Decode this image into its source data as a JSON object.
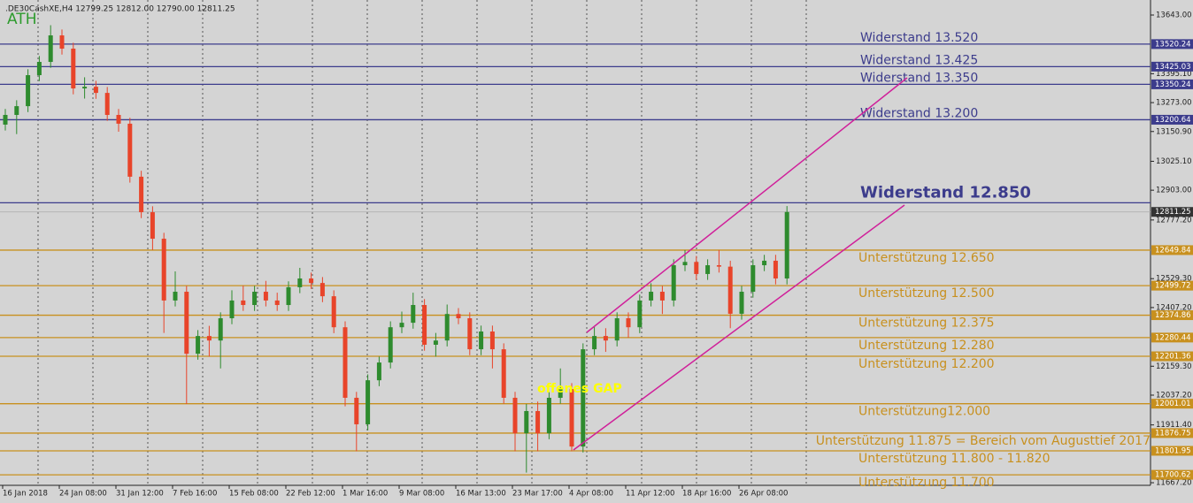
{
  "chart_data": {
    "type": "candlestick",
    "header": ".DE30CashXE,H4  12799.25 12812.00 12790.00 12811.25",
    "annotations": {
      "ath": "ATH",
      "gap": "offenes GAP"
    },
    "up_color": "#2e8b2e",
    "down_color": "#e8442a",
    "ylim": [
      13706.5,
      11656.2
    ],
    "yticks": [
      {
        "value": 13643,
        "label": "13643.00"
      },
      {
        "value": 13395.1,
        "label": "13395.10"
      },
      {
        "value": 13273,
        "label": "13273.00"
      },
      {
        "value": 13150.9,
        "label": "13150.90"
      },
      {
        "value": 13025.1,
        "label": "13025.10"
      },
      {
        "value": 12903,
        "label": "12903.00"
      },
      {
        "value": 12777.2,
        "label": "12777.20"
      },
      {
        "value": 12529.3,
        "label": "12529.30"
      },
      {
        "value": 12407.2,
        "label": "12407.20"
      },
      {
        "value": 12159.3,
        "label": "12159.30"
      },
      {
        "value": 12037.2,
        "label": "12037.20"
      },
      {
        "value": 11911.4,
        "label": "11911.40"
      },
      {
        "value": 11667.2,
        "label": "11667.20"
      }
    ],
    "current_price": 12811.25,
    "levels": [
      {
        "value": 13520.24,
        "text": "Widerstand 13.520",
        "color": "#3c3c8c"
      },
      {
        "value": 13425.03,
        "text": "Widerstand 13.425",
        "color": "#3c3c8c"
      },
      {
        "value": 13350.24,
        "text": "Widerstand 13.350",
        "color": "#3c3c8c"
      },
      {
        "value": 13200.64,
        "text": "Widerstand 13.200",
        "color": "#3c3c8c"
      },
      {
        "value": 12850,
        "text": "Widerstand 12.850",
        "color": "#3c3c8c"
      },
      {
        "value": 12649.84,
        "text": "Unterstützung 12.650",
        "color": "#c8901e"
      },
      {
        "value": 12499.72,
        "text": "Unterstützung 12.500",
        "color": "#c8901e"
      },
      {
        "value": 12374.86,
        "text": "Unterstützung 12.375",
        "color": "#c8901e"
      },
      {
        "value": 12280.44,
        "text": "Unterstützung 12.280",
        "color": "#c8901e"
      },
      {
        "value": 12201.36,
        "text": "Unterstützung 12.200",
        "color": "#c8901e"
      },
      {
        "value": 12001.01,
        "text": "Unterstützung12.000",
        "color": "#c8901e"
      },
      {
        "value": 11876.75,
        "text": "Unterstützung 11.875 = Bereich vom Augusttief 2017",
        "color": "#c8901e"
      },
      {
        "value": 11801.95,
        "text": "Unterstützung 11.800 - 11.820",
        "color": "#c8901e"
      },
      {
        "value": 11700.62,
        "text": "Unterstützung 11.700",
        "color": "#c8901e"
      }
    ],
    "categories": [
      "16 Jan 2018",
      null,
      null,
      null,
      null,
      "24 Jan 08:00",
      null,
      null,
      null,
      null,
      "31 Jan 12:00",
      null,
      null,
      null,
      null,
      "7 Feb 16:00",
      null,
      null,
      null,
      null,
      "15 Feb 08:00",
      null,
      null,
      null,
      null,
      "22 Feb 12:00",
      null,
      null,
      null,
      null,
      "1 Mar 16:00",
      null,
      null,
      null,
      null,
      "9 Mar 08:00",
      null,
      null,
      null,
      null,
      "16 Mar 13:00",
      null,
      null,
      null,
      null,
      "23 Mar 17:00",
      null,
      null,
      null,
      null,
      "4 Apr 08:00",
      null,
      null,
      null,
      null,
      "11 Apr 12:00",
      null,
      null,
      null,
      null,
      "18 Apr 16:00",
      null,
      null,
      null,
      null,
      "26 Apr 08:00",
      null,
      null,
      null,
      null
    ],
    "open": [
      13180,
      13221,
      13258,
      13389,
      13445,
      13557,
      13501,
      13333,
      13340,
      13314,
      13221,
      13184,
      12960,
      12810,
      12698,
      12437,
      12474,
      12212,
      12287,
      12268,
      12362,
      12437,
      12418,
      12474,
      12437,
      12418,
      12493,
      12530,
      12511,
      12455,
      12324,
      12026,
      11914,
      12100,
      12175,
      12324,
      12343,
      12418,
      12250,
      12268,
      12380,
      12362,
      12231,
      12306,
      12231,
      12026,
      11876,
      11970,
      11876,
      12026,
      12063,
      11820,
      12231,
      12287,
      12268,
      12362,
      12324,
      12437,
      12474,
      12437,
      12586,
      12600,
      12549,
      12586,
      12580,
      12381,
      12474,
      12586,
      12605,
      12530
    ],
    "high": [
      13246,
      13283,
      13414,
      13470,
      13600,
      13582,
      13526,
      13380,
      13365,
      13339,
      13246,
      13209,
      12985,
      12835,
      12723,
      12560,
      12499,
      12312,
      12330,
      12387,
      12480,
      12500,
      12499,
      12520,
      12470,
      12518,
      12575,
      12555,
      12536,
      12480,
      12349,
      12051,
      12125,
      12200,
      12349,
      12390,
      12470,
      12443,
      12300,
      12420,
      12405,
      12387,
      12331,
      12331,
      12256,
      12051,
      12000,
      12010,
      12051,
      12150,
      12088,
      12256,
      12330,
      12320,
      12387,
      12387,
      12462,
      12510,
      12499,
      12611,
      12650,
      12625,
      12611,
      12650,
      12605,
      12499,
      12611,
      12630,
      12630,
      12836
    ],
    "low": [
      13155,
      13140,
      13233,
      13364,
      13420,
      13476,
      13308,
      13290,
      13289,
      13196,
      13150,
      12935,
      12785,
      12650,
      12300,
      12412,
      12000,
      12187,
      12200,
      12150,
      12337,
      12393,
      12393,
      12412,
      12393,
      12393,
      12468,
      12486,
      12430,
      12299,
      11990,
      11800,
      11889,
      12075,
      12150,
      12299,
      12318,
      12225,
      12200,
      12243,
      12337,
      12206,
      12206,
      12150,
      12001,
      11800,
      11710,
      11800,
      11851,
      12001,
      11800,
      11795,
      12206,
      12220,
      12243,
      12280,
      12299,
      12412,
      12380,
      12412,
      12561,
      12524,
      12524,
      12555,
      12320,
      12356,
      12449,
      12561,
      12505,
      12505
    ],
    "close": [
      13221,
      13258,
      13389,
      13445,
      13557,
      13501,
      13333,
      13340,
      13314,
      13221,
      13184,
      12960,
      12810,
      12698,
      12437,
      12474,
      12212,
      12287,
      12268,
      12362,
      12437,
      12418,
      12474,
      12437,
      12418,
      12493,
      12530,
      12511,
      12455,
      12324,
      12026,
      11914,
      12100,
      12175,
      12324,
      12343,
      12418,
      12250,
      12268,
      12380,
      12362,
      12231,
      12306,
      12231,
      12026,
      11876,
      11970,
      11876,
      12026,
      12063,
      11820,
      12231,
      12287,
      12268,
      12362,
      12324,
      12437,
      12474,
      12437,
      12586,
      12600,
      12549,
      12586,
      12580,
      12381,
      12474,
      12586,
      12605,
      12530,
      12811
    ]
  }
}
